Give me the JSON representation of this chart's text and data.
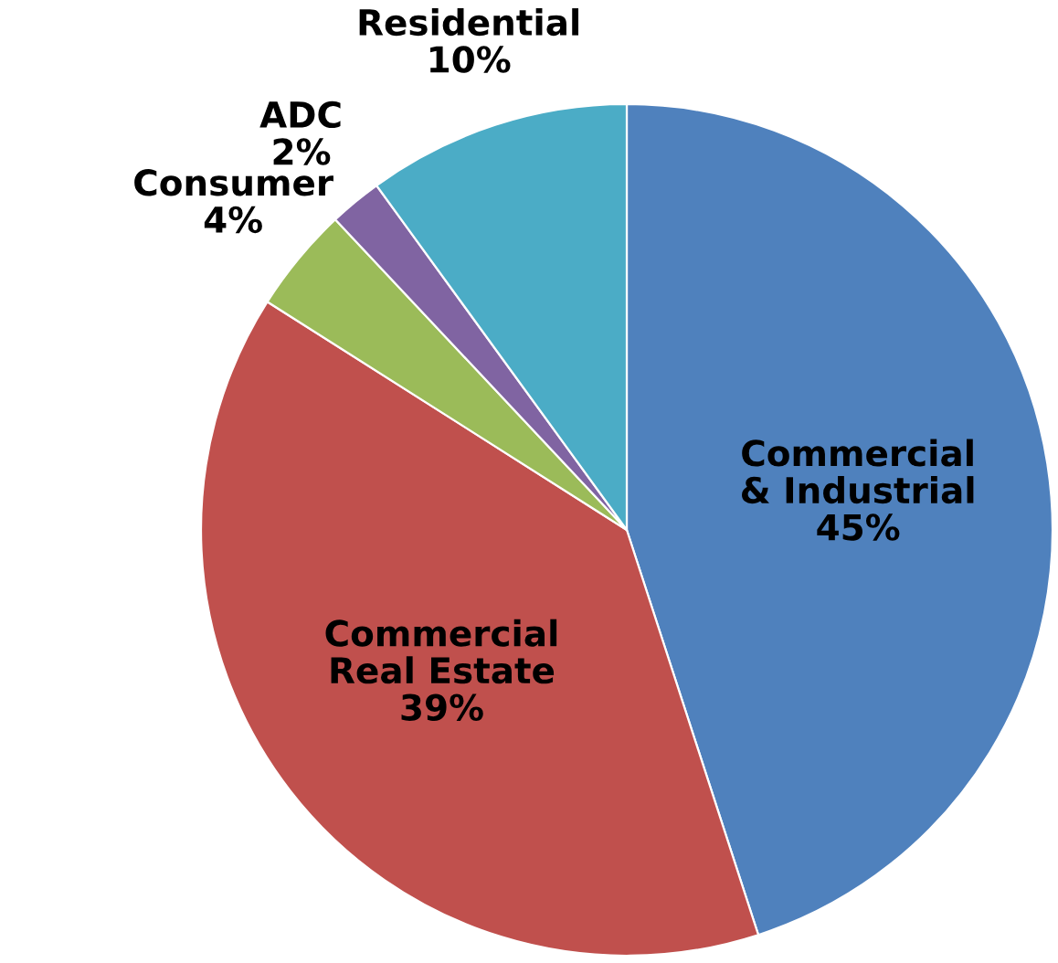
{
  "chart_data": {
    "type": "pie",
    "categories": [
      "Commercial & Industrial",
      "Commercial Real Estate",
      "Consumer",
      "ADC",
      "Residential"
    ],
    "values": [
      45,
      39,
      4,
      2,
      10
    ],
    "value_labels": [
      "45%",
      "39%",
      "4%",
      "2%",
      "10%"
    ],
    "colors": [
      "#4f81bd",
      "#c0504d",
      "#9bbb59",
      "#8064a2",
      "#4bacc6"
    ],
    "legend": false
  }
}
